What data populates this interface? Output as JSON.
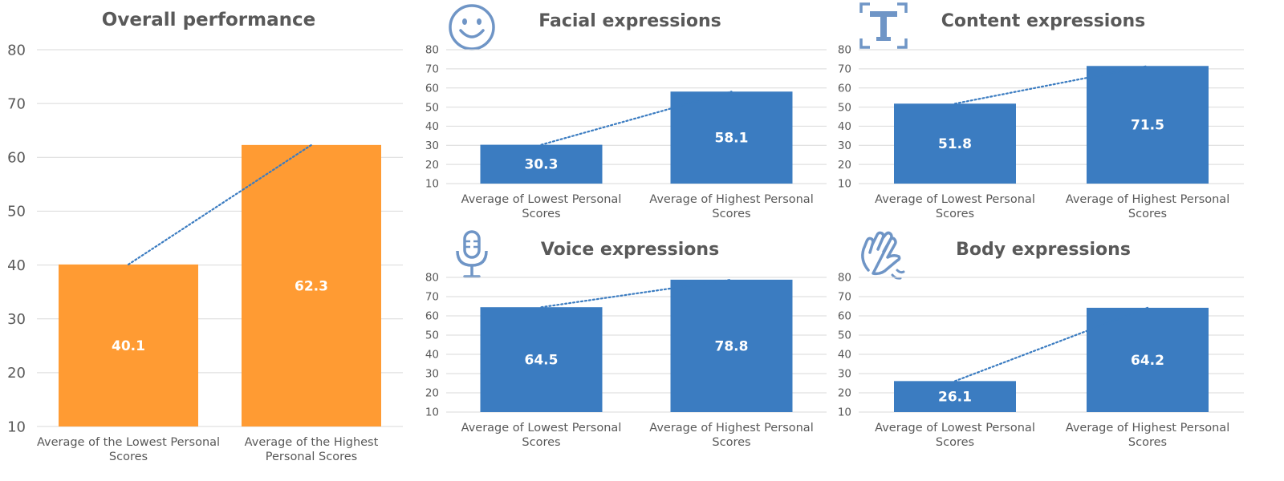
{
  "colors": {
    "orange": "#FF9B33",
    "blue": "#3B7CC1",
    "trend": "#3B7CC1",
    "grid": "#D9D9D9",
    "text": "#595959",
    "icon": "#6F95C6"
  },
  "icons": {
    "facial": "smiley-face-icon",
    "content": "text-t-icon",
    "voice": "microphone-icon",
    "body": "waving-hand-icon"
  },
  "chart_data": [
    {
      "id": "overall",
      "type": "bar",
      "title": "Overall performance",
      "categories": [
        "Average of the Lowest Personal Scores",
        "Average of the Highest Personal Scores"
      ],
      "category_lines": [
        [
          "Average of the Lowest Personal",
          "Scores"
        ],
        [
          "Average of the Highest",
          "Personal Scores"
        ]
      ],
      "values": [
        40.1,
        62.3
      ],
      "data_labels": [
        "40.1",
        "62.3"
      ],
      "ylim": [
        10,
        80
      ],
      "yticks": [
        10,
        20,
        30,
        40,
        50,
        60,
        70,
        80
      ],
      "bar_color": "#FF9B33",
      "trendline": "linear-dotted",
      "grid": true,
      "legend": "none"
    },
    {
      "id": "facial",
      "type": "bar",
      "title": "Facial expressions",
      "categories": [
        "Average of Lowest Personal Scores",
        "Average of Highest Personal Scores"
      ],
      "category_lines": [
        [
          "Average of Lowest Personal",
          "Scores"
        ],
        [
          "Average of Highest Personal",
          "Scores"
        ]
      ],
      "values": [
        30.3,
        58.1
      ],
      "data_labels": [
        "30.3",
        "58.1"
      ],
      "ylim": [
        10,
        80
      ],
      "yticks": [
        10,
        20,
        30,
        40,
        50,
        60,
        70,
        80
      ],
      "bar_color": "#3B7CC1",
      "trendline": "linear-dotted",
      "grid": true,
      "legend": "none"
    },
    {
      "id": "content",
      "type": "bar",
      "title": "Content expressions",
      "categories": [
        "Average of Lowest Personal Scores",
        "Average of Highest Personal Scores"
      ],
      "category_lines": [
        [
          "Average of Lowest Personal",
          "Scores"
        ],
        [
          "Average of Highest Personal",
          "Scores"
        ]
      ],
      "values": [
        51.8,
        71.5
      ],
      "data_labels": [
        "51.8",
        "71.5"
      ],
      "ylim": [
        10,
        80
      ],
      "yticks": [
        10,
        20,
        30,
        40,
        50,
        60,
        70,
        80
      ],
      "bar_color": "#3B7CC1",
      "trendline": "linear-dotted",
      "grid": true,
      "legend": "none"
    },
    {
      "id": "voice",
      "type": "bar",
      "title": "Voice expressions",
      "categories": [
        "Average of Lowest Personal Scores",
        "Average of Highest Personal Scores"
      ],
      "category_lines": [
        [
          "Average of Lowest Personal",
          "Scores"
        ],
        [
          "Average of Highest Personal",
          "Scores"
        ]
      ],
      "values": [
        64.5,
        78.8
      ],
      "data_labels": [
        "64.5",
        "78.8"
      ],
      "ylim": [
        10,
        80
      ],
      "yticks": [
        10,
        20,
        30,
        40,
        50,
        60,
        70,
        80
      ],
      "bar_color": "#3B7CC1",
      "trendline": "linear-dotted",
      "grid": true,
      "legend": "none"
    },
    {
      "id": "body",
      "type": "bar",
      "title": "Body expressions",
      "categories": [
        "Average of Lowest Personal Scores",
        "Average of Highest Personal Scores"
      ],
      "category_lines": [
        [
          "Average of Lowest Personal",
          "Scores"
        ],
        [
          "Average of Highest Personal",
          "Scores"
        ]
      ],
      "values": [
        26.1,
        64.2
      ],
      "data_labels": [
        "26.1",
        "64.2"
      ],
      "ylim": [
        10,
        80
      ],
      "yticks": [
        10,
        20,
        30,
        40,
        50,
        60,
        70,
        80
      ],
      "bar_color": "#3B7CC1",
      "trendline": "linear-dotted",
      "grid": true,
      "legend": "none"
    }
  ]
}
